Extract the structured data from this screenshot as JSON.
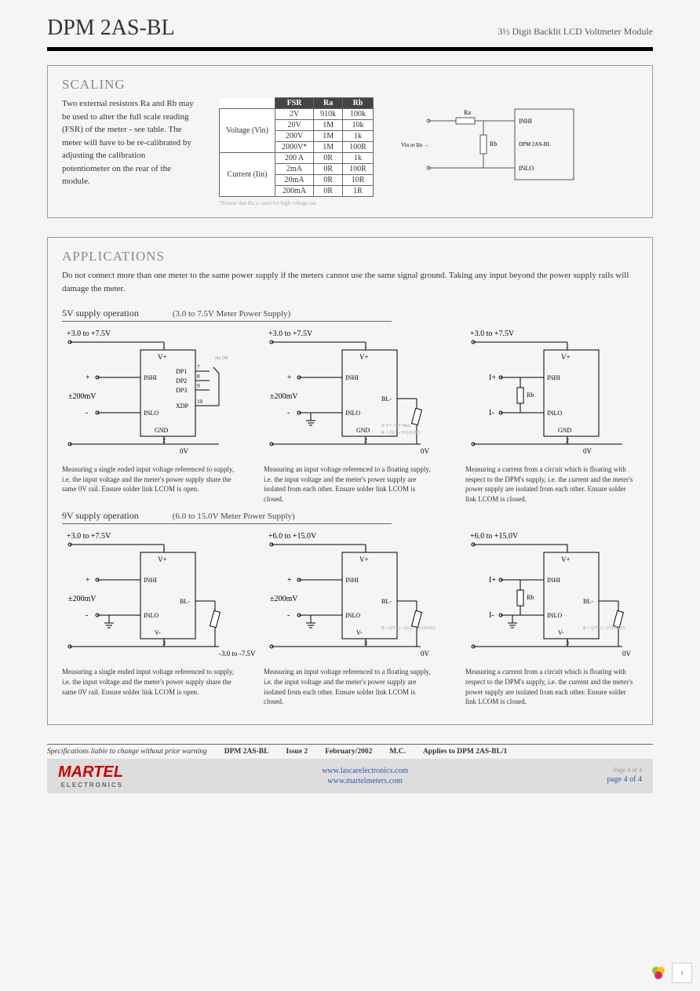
{
  "header": {
    "title": "DPM 2AS-BL",
    "subtitle": "3½ Digit Backlit LCD Voltmeter Module"
  },
  "scaling": {
    "title": "SCALING",
    "text": "Two external resistors Ra and Rb may be used to alter the full scale reading (FSR) of the meter - see table. The meter will have to be re-calibrated by adjusting the calibration potentiometer on the rear of the module.",
    "table": {
      "headers": [
        "",
        "FSR",
        "Ra",
        "Rb"
      ],
      "voltage_label": "Voltage (Vin)",
      "current_label": "Current (Iin)",
      "voltage_rows": [
        [
          "2V",
          "910k",
          "100k"
        ],
        [
          "20V",
          "1M",
          "10k"
        ],
        [
          "200V",
          "1M",
          "1k"
        ],
        [
          "2000V*",
          "1M",
          "100R"
        ]
      ],
      "current_rows": [
        [
          "200 A",
          "0R",
          "1k"
        ],
        [
          "2mA",
          "0R",
          "100R"
        ],
        [
          "20mA",
          "0R",
          "10R"
        ],
        [
          "200mA",
          "0R",
          "1R"
        ]
      ],
      "note": "*Ensure that Ra is rated for high voltage use"
    },
    "diagram": {
      "ra": "Ra",
      "rb": "Rb",
      "vin": "Vin or Iin →",
      "inhi": "INHI",
      "inlo": "INLO",
      "module": "DPM 2AS-BL"
    }
  },
  "applications": {
    "title": "APPLICATIONS",
    "intro": "Do not connect more than one meter to the same power supply if the meters cannot use the same signal ground. Taking any input beyond the power supply rails will damage the meter.",
    "op5v_title": "5V supply operation",
    "op5v_sub": "(3.0 to 7.5V Meter Power Supply)",
    "op9v_title": "9V supply operation",
    "op9v_sub": "(6.0 to 15.0V Meter Power Supply)",
    "circuits5v": [
      {
        "supply": "+3.0 to +7.5V",
        "in_label": "±200mV",
        "pins": {
          "vp": "V+",
          "inhi": "INHI",
          "inlo": "INLO",
          "gnd": "GND",
          "dp1": "DP1",
          "dp2": "DP2",
          "dp3": "DP3",
          "xdp": "XDP"
        },
        "nums": [
          "1",
          "7",
          "8",
          "9",
          "10",
          "2"
        ],
        "left_plus": "+",
        "left_minus": "-",
        "bot": "0V",
        "note": "No DP",
        "desc": "Measuring a single ended input voltage referenced to supply, i.e. the input voltage and the meter's power supply share the same 0V rail. Ensure solder link LCOM is open."
      },
      {
        "supply": "+3.0 to +7.5V",
        "in_label": "±200mV",
        "pins": {
          "vp": "V+",
          "inhi": "INHI",
          "inlo": "INLO",
          "gnd": "GND",
          "bl": "BL-"
        },
        "nums": [
          "1",
          "2"
        ],
        "left_plus": "+",
        "left_minus": "-",
        "bot": "0V",
        "rnote": "If V+ >5V then\nR = (V+ - 5V)/0.015",
        "desc": "Measuring an input voltage referenced to a floating supply, i.e. the input voltage and the meter's power supply are isolated from each other. Ensure solder link LCOM is closed."
      },
      {
        "supply": "+3.0 to +7.5V",
        "in_label": "",
        "pins": {
          "vp": "V+",
          "inhi": "INHI",
          "inlo": "INLO",
          "gnd": "GND"
        },
        "nums": [
          "1",
          "2"
        ],
        "left_plus": "I+",
        "left_minus": "I-",
        "rb": "Rb",
        "bot": "0V",
        "desc": "Measuring a current from a circuit which is floating with respect to the DPM's supply, i.e. the current and the meter's power supply are isolated from each other. Ensure solder link LCOM is closed."
      }
    ],
    "circuits9v": [
      {
        "supply": "+3.0 to +7.5V",
        "in_label": "±200mV",
        "pins": {
          "vp": "V+",
          "inhi": "INHI",
          "inlo": "INLO",
          "vm": "V-",
          "bl": "BL-"
        },
        "nums": [
          "1",
          "3"
        ],
        "left_plus": "+",
        "left_minus": "-",
        "bot": "-3.0 to -7.5V",
        "desc": "Measuring a single ended input voltage referenced to supply, i.e. the input voltage and the meter's power supply share the same 0V rail. Ensure solder link LCOM is open."
      },
      {
        "supply": "+6.0 to +15.0V",
        "in_label": "±200mV",
        "pins": {
          "vp": "V+",
          "inhi": "INHI",
          "inlo": "INLO",
          "vm": "V-",
          "bl": "BL-"
        },
        "nums": [
          "1",
          "3"
        ],
        "left_plus": "+",
        "left_minus": "-",
        "bot": "0V",
        "rnote": "R = ((V+) - (V-) - 5V)/0.015",
        "desc": "Measuring an input voltage referenced to a floating supply, i.e. the input voltage and the meter's power supply are isolated from each other. Ensure solder link LCOM is closed."
      },
      {
        "supply": "+6.0 to +15.0V",
        "in_label": "",
        "pins": {
          "vp": "V+",
          "inhi": "INHI",
          "inlo": "INLO",
          "vm": "V-",
          "bl": "BL-"
        },
        "nums": [
          "1",
          "3"
        ],
        "left_plus": "I+",
        "left_minus": "I-",
        "rb": "Rb",
        "bot": "0V",
        "rnote": "R = ((V+) - 5V)/0.015",
        "desc": "Measuring a current from a circuit which is floating with respect to the DPM's supply, i.e. the current and the meter's power supply are isolated from each other. Ensure solder link LCOM is closed."
      }
    ]
  },
  "specline": {
    "warn": "Specifications liable to change without prior warning",
    "prod": "DPM 2AS-BL",
    "issue": "Issue 2",
    "date": "February/2002",
    "mc": "M.C.",
    "applies": "Applies to DPM 2AS-BL/1"
  },
  "footer": {
    "logo": "MARTEL",
    "logo_sub": "ELECTRONICS",
    "link1": "www.lascarelectronics.com",
    "link2": "www.martelmeters.com",
    "page_grey": "Page 4 of 4",
    "page": "page 4 of 4"
  }
}
